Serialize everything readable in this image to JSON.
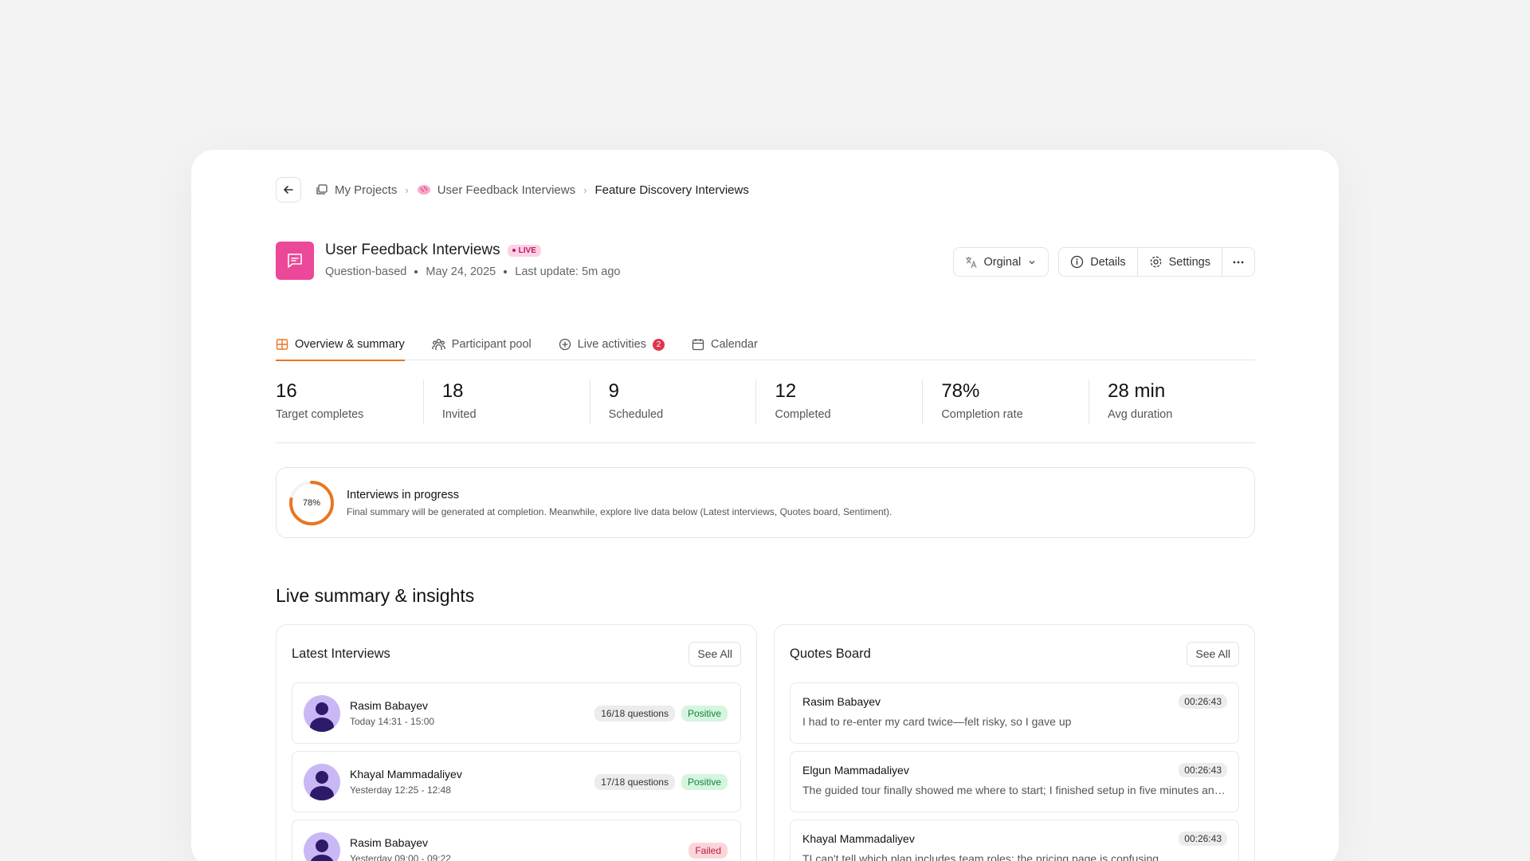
{
  "breadcrumb": {
    "items": [
      {
        "label": "My Projects"
      },
      {
        "label": "User Feedback Interviews"
      },
      {
        "label": "Feature Discovery Interviews"
      }
    ]
  },
  "project": {
    "title": "User Feedback Interviews",
    "status_badge": "LIVE",
    "type": "Question-based",
    "date": "May 24, 2025",
    "last_update": "Last update: 5m ago"
  },
  "actions": {
    "language": "Orginal",
    "details": "Details",
    "settings": "Settings"
  },
  "tabs": [
    {
      "label": "Overview & summary",
      "active": true
    },
    {
      "label": "Participant pool"
    },
    {
      "label": "Live activities",
      "badge": "2"
    },
    {
      "label": "Calendar"
    }
  ],
  "stats": [
    {
      "value": "16",
      "label": "Target completes"
    },
    {
      "value": "18",
      "label": "Invited"
    },
    {
      "value": "9",
      "label": "Scheduled"
    },
    {
      "value": "12",
      "label": "Completed"
    },
    {
      "value": "78%",
      "label": "Completion rate"
    },
    {
      "value": "28 min",
      "label": "Avg duration"
    }
  ],
  "progress": {
    "percent_label": "78%",
    "percent": 78,
    "title": "Interviews in progress",
    "subtitle": "Final summary will be generated at completion. Meanwhile, explore live data below (Latest interviews, Quotes board, Sentiment)."
  },
  "insights": {
    "title": "Live summary & insights",
    "latest": {
      "title": "Latest Interviews",
      "see_all": "See All",
      "rows": [
        {
          "name": "Rasim Babayev",
          "time": "Today 14:31 - 15:00",
          "questions": "16/18 questions",
          "status": "Positive"
        },
        {
          "name": "Khayal Mammadaliyev",
          "time": "Yesterday 12:25 - 12:48",
          "questions": "17/18 questions",
          "status": "Positive"
        },
        {
          "name": "Rasim Babayev",
          "time": "Yesterday 09:00 - 09:22",
          "questions": "",
          "status": "Failed"
        }
      ]
    },
    "quotes": {
      "title": "Quotes Board",
      "see_all": "See All",
      "rows": [
        {
          "name": "Rasim Babayev",
          "time": "00:26:43",
          "text": "I had to re-enter my card twice—felt risky, so I gave up"
        },
        {
          "name": "Elgun Mammadaliyev",
          "time": "00:26:43",
          "text": "The guided tour finally showed me where to start; I finished setup in five minutes and felt confident"
        },
        {
          "name": "Khayal Mammadaliyev",
          "time": "00:26:43",
          "text": "TI can't tell which plan includes team roles; the pricing page is confusing"
        }
      ]
    }
  },
  "colors": {
    "accent": "#e8761f",
    "project_icon": "#ec4899",
    "positive": "#15803d",
    "failed": "#b91c3c"
  }
}
